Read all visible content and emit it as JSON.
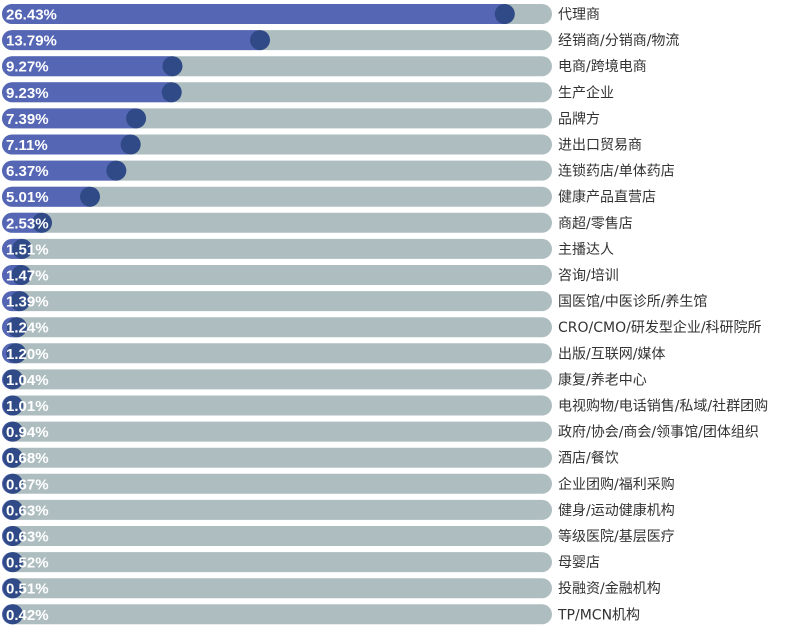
{
  "chart_data": {
    "type": "bar",
    "orientation": "horizontal",
    "categories": [
      "代理商",
      "经销商/分销商/物流",
      "电商/跨境电商",
      "生产企业",
      "品牌方",
      "进出口贸易商",
      "连锁药店/单体药店",
      "健康产品直营店",
      "商超/零售店",
      "主播达人",
      "咨询/培训",
      "国医馆/中医诊所/养生馆",
      "CRO/CMO/研发型企业/科研院所",
      "出版/互联网/媒体",
      "康复/养老中心",
      "电视购物/电话销售/私域/社群团购",
      "政府/协会/商会/领事馆/团体组织",
      "酒店/餐饮",
      "企业团购/福利采购",
      "健身/运动健康机构",
      "等级医院/基层医疗",
      "母婴店",
      "投融资/金融机构",
      "TP/MCN机构"
    ],
    "values": [
      26.43,
      13.79,
      9.27,
      9.23,
      7.39,
      7.11,
      6.37,
      5.01,
      2.53,
      1.51,
      1.47,
      1.39,
      1.24,
      1.2,
      1.04,
      1.01,
      0.94,
      0.68,
      0.67,
      0.63,
      0.63,
      0.52,
      0.51,
      0.42
    ],
    "value_labels": [
      "26.43%",
      "13.79%",
      "9.27%",
      "9.23%",
      "7.39%",
      "7.11%",
      "6.37%",
      "5.01%",
      "2.53%",
      "1.51%",
      "1.47%",
      "1.39%",
      "1.24%",
      "1.20%",
      "1.04%",
      "1.01%",
      "0.94%",
      "0.68%",
      "0.67%",
      "0.63%",
      "0.63%",
      "0.52%",
      "0.51%",
      "0.42%"
    ],
    "unit": "%",
    "xlim": [
      0,
      28.3
    ],
    "grid": false,
    "legend": "none",
    "colors": {
      "track": "#aebdbf",
      "bar": "#5566b5",
      "bar_end_dot": "#2f4a86",
      "value_text": "#ffffff",
      "category_text": "#333333"
    }
  }
}
